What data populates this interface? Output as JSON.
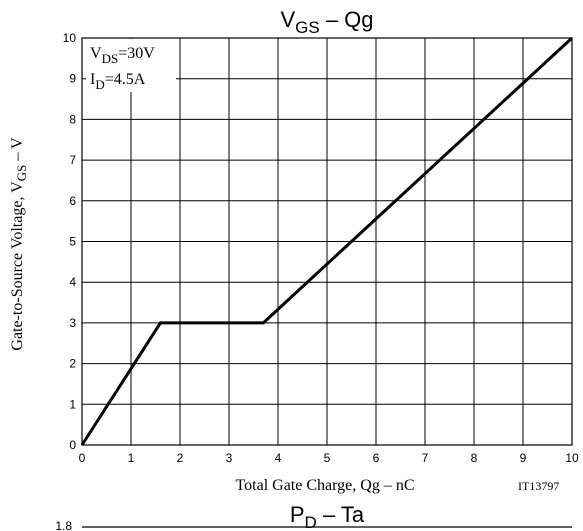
{
  "chart_data": [
    {
      "type": "line",
      "title": {
        "main": "V",
        "sub": "GS",
        "rest": " – Qg"
      },
      "xlabel": "Total Gate Charge, Qg  –  nC",
      "ylabel": {
        "main": "Gate-to-Source Voltage, V",
        "sub": "GS",
        "rest": "  –  V"
      },
      "xlim": [
        0,
        10
      ],
      "ylim": [
        0,
        10
      ],
      "x_ticks": [
        "0",
        "1",
        "2",
        "3",
        "4",
        "5",
        "6",
        "7",
        "8",
        "9",
        "10"
      ],
      "y_ticks": [
        "0",
        "1",
        "2",
        "3",
        "4",
        "5",
        "6",
        "7",
        "8",
        "9",
        "10"
      ],
      "grid": true,
      "series": [
        {
          "x": [
            0,
            1.6,
            3.7,
            10
          ],
          "y": [
            0,
            3,
            3,
            10
          ]
        }
      ],
      "annotations": [
        {
          "main": "V",
          "sub": "DS",
          "rest": "=30V"
        },
        {
          "main": "I",
          "sub": "D",
          "rest": "=4.5A"
        }
      ],
      "figure_id": "IT13797"
    },
    {
      "type": "line",
      "title": {
        "main": "P",
        "sub": "D",
        "rest": " – Ta"
      },
      "y_ticks": [
        "1.8"
      ]
    }
  ],
  "colors": {
    "line": "#000000",
    "grid": "#000000",
    "background": "#ffffff"
  }
}
